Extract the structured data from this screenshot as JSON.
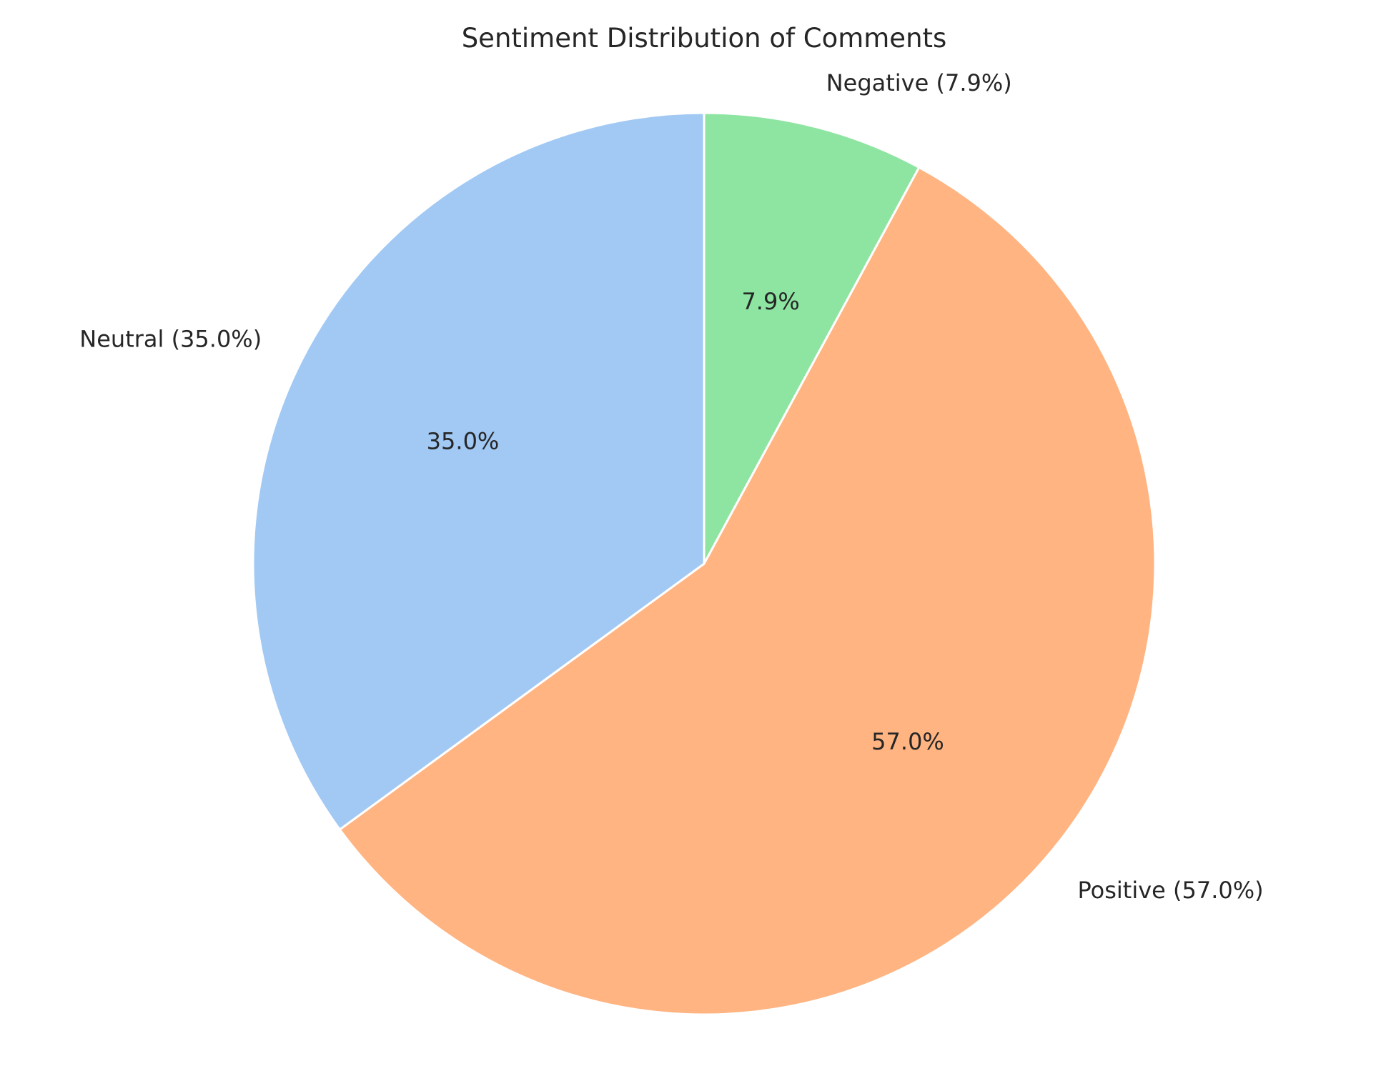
{
  "chart_data": {
    "type": "pie",
    "title": "Sentiment Distribution of Comments",
    "start": "top, clockwise",
    "slices": [
      {
        "label": "Negative",
        "outer_label": "Negative (7.9%)",
        "pct_label": "7.9%",
        "value": 7.9,
        "color": "#8de5a1"
      },
      {
        "label": "Positive",
        "outer_label": "Positive (57.0%)",
        "pct_label": "57.0%",
        "value": 57.0,
        "color": "#ffb482"
      },
      {
        "label": "Neutral",
        "outer_label": "Neutral (35.0%)",
        "pct_label": "35.0%",
        "value": 35.0,
        "color": "#a1c9f4"
      }
    ],
    "edge_color": "#ffffff",
    "legend": "none",
    "grid": false
  }
}
